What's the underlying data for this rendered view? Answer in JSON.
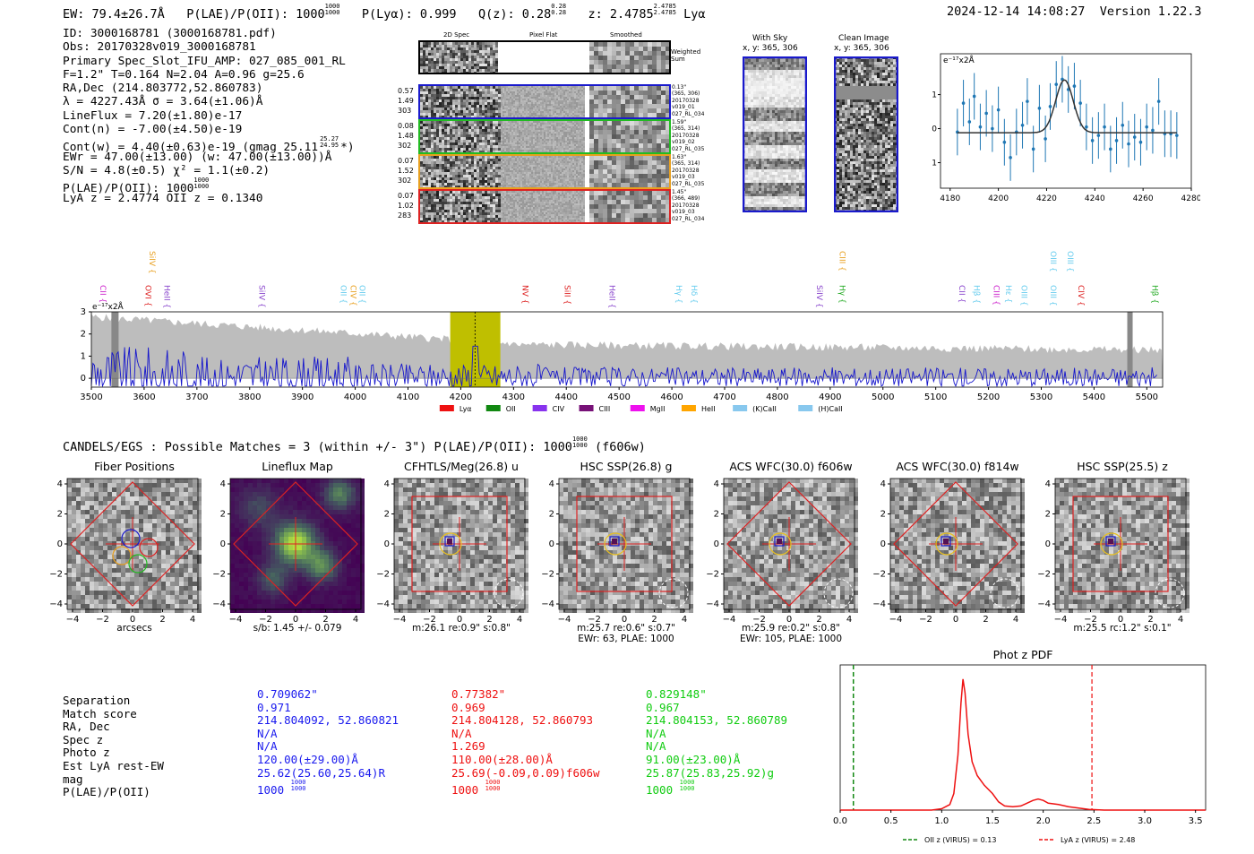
{
  "header": {
    "ew": "EW: 79.4±26.7Å",
    "plae_label": "P(LAE)/P(OII): 1000",
    "plae_num": "1000",
    "plae_den": "1000",
    "plya": "P(Lyα): 0.999",
    "qz": "Q(z): 0.28",
    "qz_num": "0.28",
    "qz_den": "0.28",
    "z": "z: 2.4785",
    "z_num": "2.4785",
    "z_den": "2.4785",
    "z_line": "Lyα",
    "timestamp": "2024-12-14 14:08:27",
    "version": "Version 1.22.3"
  },
  "info": {
    "id": "ID: 3000168781 (3000168781.pdf)",
    "obs": "Obs: 20170328v019_3000168781",
    "primary": "Primary Spec_Slot_IFU_AMP: 027_085_001_RL",
    "fit": "F=1.2\"  T=0.164  N=2.04  A=0.96  g=25.6",
    "radec": "RA,Dec (214.803772,52.860783)",
    "lambda": "λ = 4227.43Å  σ = 3.64(±1.06)Å",
    "lineflux": "LineFlux = 7.20(±1.80)e-17",
    "cont": "Cont(n) = -7.00(±4.50)e-19",
    "contw": "Cont(w) = 4.40(±0.63)e-19 (gmag 25.11",
    "contw_num": "25.27",
    "contw_den": "24.95",
    "contw_end": "*)",
    "ewr": "EWr = 47.00(±13.00) (w: 47.00(±13.00))Å",
    "sn": "S/N = 4.8(±0.5)  χ² = 1.1(±0.2)",
    "plae": "P(LAE)/P(OII): 1000",
    "plae_num": "1000",
    "plae_den": "1000",
    "lya_z": "LyA z = 2.4774  OII z = 0.1340"
  },
  "spec2d": {
    "col_labels": [
      "2D Spec",
      "Pixel Flat",
      "Smoothed"
    ],
    "weighted_sum": "Weighted Sum",
    "rows": [
      {
        "left": [
          "0.57",
          "1.49",
          "303"
        ],
        "right": [
          "0.13\"",
          "(365, 306)",
          "20170328",
          "v019_01",
          "027_RL_034"
        ],
        "color": "#1a1acc"
      },
      {
        "left": [
          "0.08",
          "1.48",
          "302"
        ],
        "right": [
          "1.59\"",
          "(365, 314)",
          "20170328",
          "v019_02",
          "027_RL_035"
        ],
        "color": "#22bb22"
      },
      {
        "left": [
          "0.07",
          "1.52",
          "302"
        ],
        "right": [
          "1.63\"",
          "(365, 314)",
          "20170328",
          "v019_03",
          "027_RL_035"
        ],
        "color": "#e8a020"
      },
      {
        "left": [
          "0.07",
          "1.02",
          "283"
        ],
        "right": [
          "1.45\"",
          "(366, 489)",
          "20170328",
          "v019_03",
          "027_RL_034"
        ],
        "color": "#dd2222"
      }
    ]
  },
  "sky": {
    "with_sky": "With Sky",
    "with_sky_xy": "x, y: 365, 306",
    "clean": "Clean Image",
    "clean_xy": "x, y: 365, 306"
  },
  "line_fit": {
    "ylabel": "e⁻¹⁷x2Å",
    "xticks": [
      "4180",
      "4200",
      "4220",
      "4240",
      "4260",
      "4280"
    ],
    "yticks": [
      "1",
      "0",
      "-1"
    ],
    "points": [
      [
        4183.0,
        -0.1
      ],
      [
        4185.5,
        0.75
      ],
      [
        4188,
        0.2
      ],
      [
        4190,
        0.95
      ],
      [
        4192.5,
        0.05
      ],
      [
        4195,
        0.45
      ],
      [
        4197.5,
        0.0
      ],
      [
        4200,
        0.55
      ],
      [
        4202.5,
        -0.4
      ],
      [
        4205,
        -0.85
      ],
      [
        4207.5,
        -0.1
      ],
      [
        4210,
        0.1
      ],
      [
        4212,
        0.8
      ],
      [
        4214.5,
        -0.6
      ],
      [
        4217,
        0.6
      ],
      [
        4219.5,
        -0.3
      ],
      [
        4221.5,
        0.65
      ],
      [
        4224,
        1.3
      ],
      [
        4226.5,
        1.45
      ],
      [
        4229,
        1.15
      ],
      [
        4231.5,
        1.25
      ],
      [
        4234,
        0.75
      ],
      [
        4236.5,
        0.05
      ],
      [
        4239,
        -0.35
      ],
      [
        4241.5,
        -0.2
      ],
      [
        4244,
        0.05
      ],
      [
        4246.5,
        -0.6
      ],
      [
        4249,
        -0.35
      ],
      [
        4251.5,
        0.1
      ],
      [
        4254,
        -0.45
      ],
      [
        4256.5,
        -0.25
      ],
      [
        4259,
        -0.4
      ],
      [
        4261.5,
        0.05
      ],
      [
        4264,
        -0.05
      ],
      [
        4266.5,
        0.8
      ],
      [
        4269,
        -0.15
      ],
      [
        4271.5,
        -0.15
      ],
      [
        4274,
        -0.2
      ]
    ],
    "fit_center": 4227.4,
    "fit_sigma": 3.64,
    "fit_amp": 1.55,
    "fit_base": -0.12,
    "xlim": [
      4176,
      4280
    ],
    "ylim": [
      -1.75,
      2.2
    ]
  },
  "full_spectrum": {
    "ylabel": "e⁻¹⁷x2Å",
    "xticks": [
      "3500",
      "3600",
      "3700",
      "3800",
      "3900",
      "4000",
      "4100",
      "4200",
      "4300",
      "4400",
      "4500",
      "4600",
      "4700",
      "4800",
      "4900",
      "5000",
      "5100",
      "5200",
      "5300",
      "5400",
      "5500"
    ],
    "yticks": [
      "3",
      "2",
      "1",
      "0"
    ],
    "xlim": [
      3500,
      5530
    ],
    "ylim": [
      -0.4,
      3.0
    ],
    "highlight": [
      4180,
      4275
    ],
    "line_labels": [
      {
        "name": "CII",
        "x": 3512,
        "color": "#cc22cc",
        "level": "low"
      },
      {
        "name": "SiIV",
        "x": 3605,
        "color": "#e8a020",
        "level": "high"
      },
      {
        "name": "OVI",
        "x": 3598,
        "color": "#dd2222",
        "level": "low"
      },
      {
        "name": "HeII",
        "x": 3633,
        "color": "#8844cc",
        "level": "low"
      },
      {
        "name": "SiIV",
        "x": 3813,
        "color": "#8844cc",
        "level": "low"
      },
      {
        "name": "OII",
        "x": 3968,
        "color": "#66ccee",
        "level": "low"
      },
      {
        "name": "CIV",
        "x": 3986,
        "color": "#e8a020",
        "level": "low"
      },
      {
        "name": "OII",
        "x": 4003,
        "color": "#66ccee",
        "level": "low"
      },
      {
        "name": "NV",
        "x": 4312,
        "color": "#dd2222",
        "level": "low"
      },
      {
        "name": "SiII",
        "x": 4392,
        "color": "#dd2222",
        "level": "low"
      },
      {
        "name": "HeII",
        "x": 4477,
        "color": "#8844cc",
        "level": "low"
      },
      {
        "name": "Hγ",
        "x": 4603,
        "color": "#66ccee",
        "level": "low"
      },
      {
        "name": "Hδ",
        "x": 4632,
        "color": "#66ccee",
        "level": "low"
      },
      {
        "name": "SiIV",
        "x": 4870,
        "color": "#8844cc",
        "level": "low"
      },
      {
        "name": "CIII",
        "x": 4913,
        "color": "#e8a020",
        "level": "high"
      },
      {
        "name": "Hγ",
        "x": 4913,
        "color": "#22aa22",
        "level": "low"
      },
      {
        "name": "CII",
        "x": 5140,
        "color": "#8844cc",
        "level": "low"
      },
      {
        "name": "Hβ",
        "x": 5168,
        "color": "#66ccee",
        "level": "low"
      },
      {
        "name": "CIII",
        "x": 5205,
        "color": "#cc22cc",
        "level": "low"
      },
      {
        "name": "Hε",
        "x": 5228,
        "color": "#66ccee",
        "level": "low"
      },
      {
        "name": "OIII",
        "x": 5258,
        "color": "#66ccee",
        "level": "low"
      },
      {
        "name": "OIII",
        "x": 5313,
        "color": "#66ccee",
        "level": "high"
      },
      {
        "name": "OIII",
        "x": 5313,
        "color": "#66ccee",
        "level": "low"
      },
      {
        "name": "OIII",
        "x": 5345,
        "color": "#66ccee",
        "level": "high"
      },
      {
        "name": "CIV",
        "x": 5365,
        "color": "#dd2222",
        "level": "low"
      },
      {
        "name": "Hβ",
        "x": 5505,
        "color": "#22aa22",
        "level": "low"
      }
    ],
    "legend": [
      {
        "name": "Lyα",
        "color": "#ee1111"
      },
      {
        "name": "OII",
        "color": "#118811"
      },
      {
        "name": "CIV",
        "color": "#8833ee"
      },
      {
        "name": "CIII",
        "color": "#771177"
      },
      {
        "name": "MgII",
        "color": "#ee11ee"
      },
      {
        "name": "HeII",
        "color": "#ffa500"
      },
      {
        "name": "(K)CaII",
        "color": "#88c8ee"
      },
      {
        "name": "(H)CaII",
        "color": "#88c8ee"
      }
    ]
  },
  "candels": {
    "title": "CANDELS/EGS : Possible Matches = 3 (within +/- 3\")  P(LAE)/P(OII): 1000",
    "plae_num": "1000",
    "plae_den": "1000",
    "filter": "(f606w)"
  },
  "stamps": [
    {
      "title": "Fiber Positions",
      "caption": [
        "arcsecs"
      ],
      "kind": "fiber"
    },
    {
      "title": "Lineflux Map",
      "caption": [
        "s/b: 1.45 +/- 0.079"
      ],
      "kind": "flux"
    },
    {
      "title": "CFHTLS/Meg(26.8) u",
      "caption": [
        "m:26.1  re:0.9\"  s:0.8\""
      ],
      "kind": "square"
    },
    {
      "title": "HSC SSP(26.8) g",
      "caption": [
        "m:25.7  re:0.6\"  s:0.7\"",
        "EWr: 63, PLAE: 1000"
      ],
      "kind": "square"
    },
    {
      "title": "ACS WFC(30.0) f606w",
      "caption": [
        "m:25.9  re:0.2\"  s:0.8\"",
        "EWr: 105, PLAE: 1000"
      ],
      "kind": "diamond"
    },
    {
      "title": "ACS WFC(30.0) f814w",
      "caption": [],
      "kind": "diamond"
    },
    {
      "title": "HSC SSP(25.5) z",
      "caption": [
        "m:25.5  rc:1.2\"  s:0.1\""
      ],
      "kind": "square"
    }
  ],
  "stamp_ticks": {
    "y": [
      "4",
      "2",
      "0",
      "−2",
      "−4"
    ],
    "x": [
      "−4",
      "−2",
      "0",
      "2",
      "4"
    ]
  },
  "matches": {
    "labels": [
      "Separation",
      "Match score",
      "RA, Dec",
      "Spec z",
      "Photo z",
      "Est LyA rest-EW",
      "mag",
      "P(LAE)/P(OII)"
    ],
    "columns": [
      {
        "color": "#1a1aee",
        "values": [
          "0.709062\"",
          "0.971",
          "214.804092, 52.860821",
          "N/A",
          "N/A",
          "120.00(±29.00)Å",
          "25.62(25.60,25.64)R",
          "1000"
        ],
        "plae_num": "1000",
        "plae_den": "1000"
      },
      {
        "color": "#ee1111",
        "values": [
          "0.77382\"",
          "0.969",
          "214.804128, 52.860793",
          "N/A",
          "1.269",
          "110.00(±28.00)Å",
          "25.69(-0.09,0.09)f606w",
          "1000"
        ],
        "plae_num": "1000",
        "plae_den": "1000"
      },
      {
        "color": "#11cc11",
        "values": [
          "0.829148\"",
          "0.967",
          "214.804153, 52.860789",
          "N/A",
          "N/A",
          "91.00(±23.00)Å",
          "25.87(25.83,25.92)g",
          "1000"
        ],
        "plae_num": "1000",
        "plae_den": "1000"
      }
    ]
  },
  "photz": {
    "title": "Phot z PDF",
    "xticks": [
      "0.0",
      "0.5",
      "1.0",
      "1.5",
      "2.0",
      "2.5",
      "3.0",
      "3.5"
    ],
    "xlim": [
      0.0,
      3.6
    ],
    "oii_z": 0.13,
    "lya_z": 2.48,
    "legend_oii": "OII z (VIRUS) = 0.13",
    "legend_lya": "LyA z (VIRUS) = 2.48",
    "pdf": [
      [
        0.0,
        0.0
      ],
      [
        0.9,
        0.0
      ],
      [
        1.0,
        0.01
      ],
      [
        1.08,
        0.04
      ],
      [
        1.12,
        0.12
      ],
      [
        1.16,
        0.4
      ],
      [
        1.19,
        0.78
      ],
      [
        1.21,
        0.95
      ],
      [
        1.23,
        0.85
      ],
      [
        1.26,
        0.55
      ],
      [
        1.3,
        0.35
      ],
      [
        1.35,
        0.25
      ],
      [
        1.42,
        0.18
      ],
      [
        1.5,
        0.12
      ],
      [
        1.56,
        0.06
      ],
      [
        1.62,
        0.03
      ],
      [
        1.7,
        0.025
      ],
      [
        1.78,
        0.03
      ],
      [
        1.84,
        0.05
      ],
      [
        1.9,
        0.07
      ],
      [
        1.95,
        0.08
      ],
      [
        2.0,
        0.07
      ],
      [
        2.05,
        0.05
      ],
      [
        2.15,
        0.04
      ],
      [
        2.25,
        0.025
      ],
      [
        2.35,
        0.015
      ],
      [
        2.45,
        0.005
      ],
      [
        2.6,
        0.0
      ],
      [
        3.6,
        0.0
      ]
    ]
  }
}
